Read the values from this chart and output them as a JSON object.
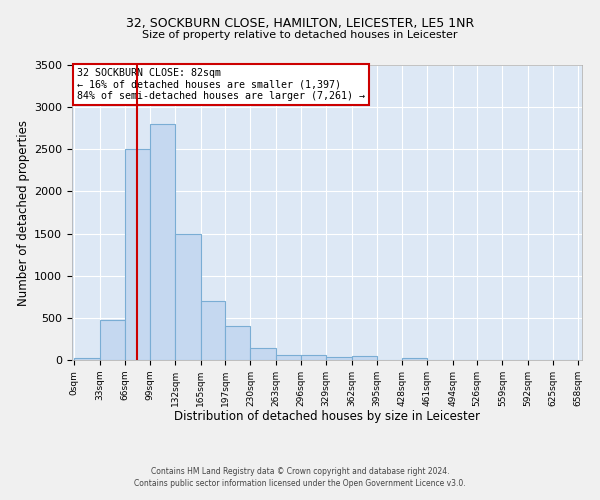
{
  "title1": "32, SOCKBURN CLOSE, HAMILTON, LEICESTER, LE5 1NR",
  "title2": "Size of property relative to detached houses in Leicester",
  "xlabel": "Distribution of detached houses by size in Leicester",
  "ylabel": "Number of detached properties",
  "bar_left_edges": [
    0,
    33,
    66,
    99,
    132,
    165,
    197,
    230,
    263,
    296,
    329,
    362,
    395,
    428,
    461,
    494,
    526,
    559,
    592,
    625
  ],
  "bar_widths": [
    33,
    33,
    33,
    33,
    33,
    32,
    33,
    33,
    33,
    33,
    33,
    33,
    33,
    33,
    33,
    32,
    33,
    33,
    33,
    33
  ],
  "bar_heights": [
    20,
    470,
    2500,
    2800,
    1500,
    700,
    400,
    145,
    60,
    60,
    40,
    50,
    0,
    20,
    0,
    0,
    0,
    0,
    0,
    0
  ],
  "bar_color": "#c5d8f0",
  "bar_edgecolor": "#7aadd4",
  "tick_labels": [
    "0sqm",
    "33sqm",
    "66sqm",
    "99sqm",
    "132sqm",
    "165sqm",
    "197sqm",
    "230sqm",
    "263sqm",
    "296sqm",
    "329sqm",
    "362sqm",
    "395sqm",
    "428sqm",
    "461sqm",
    "494sqm",
    "526sqm",
    "559sqm",
    "592sqm",
    "625sqm",
    "658sqm"
  ],
  "ylim": [
    0,
    3500
  ],
  "yticks": [
    0,
    500,
    1000,
    1500,
    2000,
    2500,
    3000,
    3500
  ],
  "property_value": 82,
  "vline_color": "#cc0000",
  "annotation_title": "32 SOCKBURN CLOSE: 82sqm",
  "annotation_line1": "← 16% of detached houses are smaller (1,397)",
  "annotation_line2": "84% of semi-detached houses are larger (7,261) →",
  "annotation_box_edgecolor": "#cc0000",
  "bg_color": "#dde8f5",
  "grid_color": "#ffffff",
  "fig_bg": "#f0f0f0",
  "footnote1": "Contains HM Land Registry data © Crown copyright and database right 2024.",
  "footnote2": "Contains public sector information licensed under the Open Government Licence v3.0."
}
